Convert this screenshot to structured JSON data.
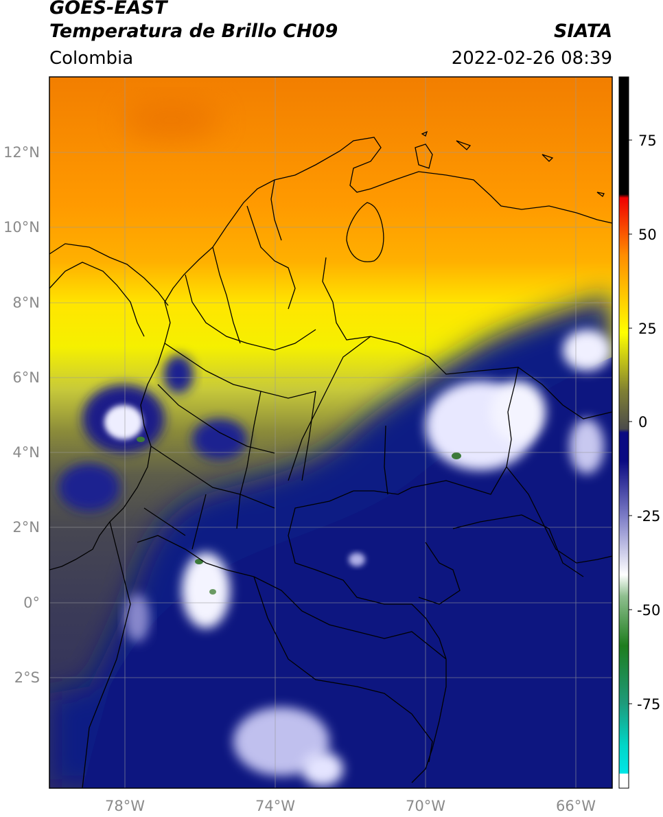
{
  "header": {
    "satellite": "GOES-EAST",
    "product": "Temperatura de Brillo CH09",
    "region": "Colombia",
    "source": "SIATA",
    "datetime": "2022-02-26 08:39"
  },
  "map": {
    "lon_ticks": [
      "78°W",
      "74°W",
      "70°W",
      "66°W"
    ],
    "lat_ticks": [
      "12°N",
      "10°N",
      "8°N",
      "6°N",
      "4°N",
      "2°N",
      "0°",
      "2°S"
    ],
    "colors": {
      "warm_orange": "#f08c00",
      "orange": "#ff9a00",
      "yellow": "#f5f000",
      "olive": "#7a7a30",
      "gray": "#4e4e56",
      "deep_blue": "#0d1680",
      "cloud_white": "#f0f0ff",
      "cloud_green": "#2e6f2a"
    }
  },
  "colorbar": {
    "ticks": [
      "75",
      "50",
      "25",
      "0",
      "-25",
      "-50",
      "-75"
    ],
    "colors": {
      "black": "#000000",
      "red": "#f00000",
      "orange": "#ff8c00",
      "yellow": "#ffff00",
      "olive": "#828232",
      "gray": "#4b4b4b",
      "blue": "#0a0a82",
      "white": "#ffffff",
      "green": "#1e7d1e",
      "cyan": "#00e6e6"
    }
  }
}
